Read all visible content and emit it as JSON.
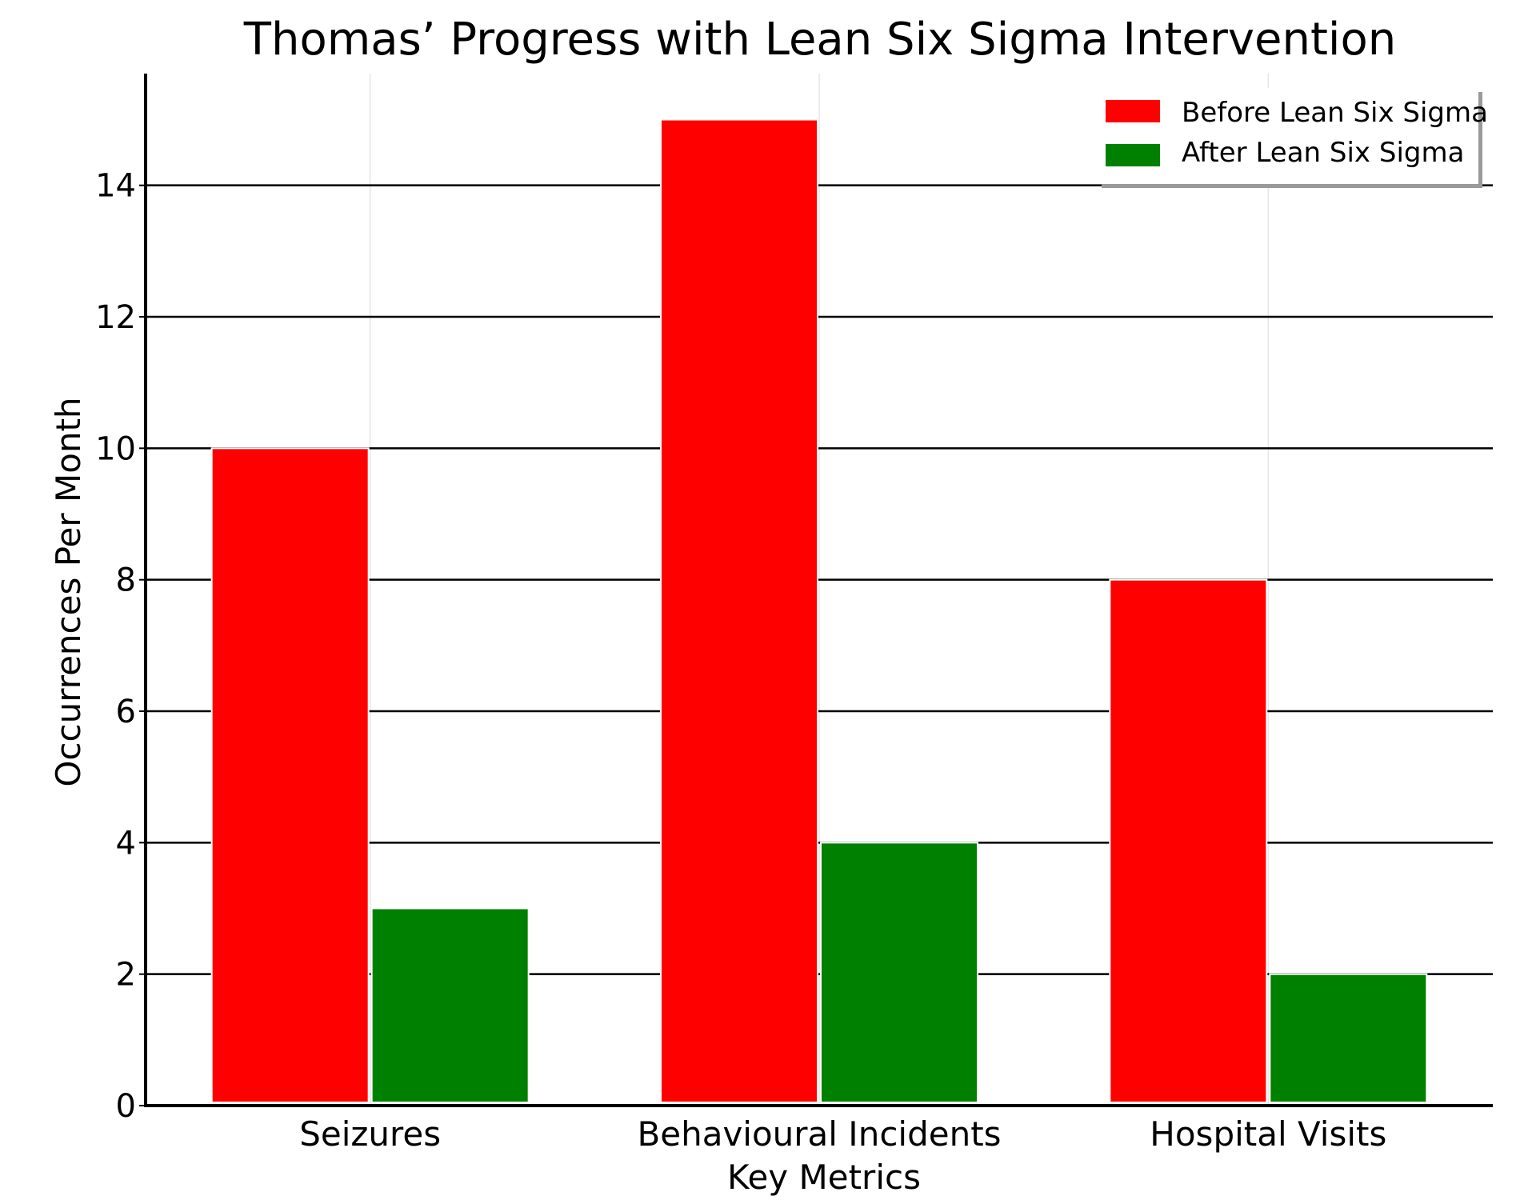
{
  "chart_data": {
    "type": "bar",
    "title": "Thomas’ Progress with Lean Six Sigma Intervention",
    "xlabel": "Key Metrics",
    "ylabel": "Occurrences Per Month",
    "categories": [
      "Seizures",
      "Behavioural Incidents",
      "Hospital Visits"
    ],
    "series": [
      {
        "name": "Before Lean Six Sigma",
        "values": [
          10,
          15,
          8
        ],
        "color": "#ff0000"
      },
      {
        "name": "After Lean Six Sigma",
        "values": [
          3,
          4,
          2
        ],
        "color": "#008000"
      }
    ],
    "ylim": [
      0,
      15.7
    ],
    "yticks": [
      "0",
      "2",
      "4",
      "6",
      "8",
      "10",
      "12",
      "14"
    ],
    "grid": "horizontal",
    "legend_position": "top-right"
  }
}
